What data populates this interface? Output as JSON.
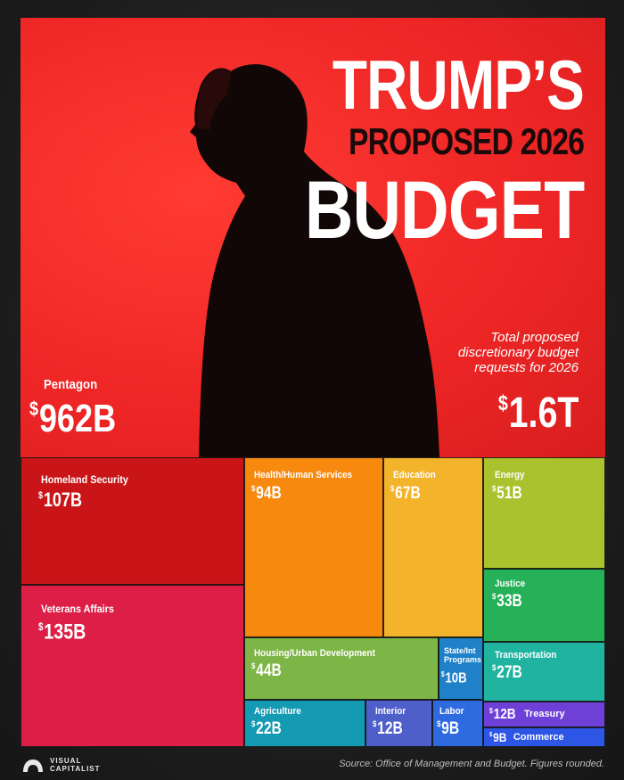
{
  "title": {
    "line1": "TRUMP’S",
    "line2": "PROPOSED 2026",
    "line3": "BUDGET"
  },
  "total": {
    "caption_line1": "Total proposed",
    "caption_line2": "discretionary budget",
    "caption_line3": "requests for 2026",
    "currency": "$",
    "value": "1.6T"
  },
  "source": "Source: Office of Management and Budget. Figures rounded.",
  "logo": {
    "line1": "VISUAL",
    "line2": "CAPITALIST"
  },
  "colors": {
    "hero_red": "#ed2525",
    "homeland": "#c91518",
    "veterans": "#dd1e47",
    "health": "#f7890f",
    "education": "#f3b32a",
    "energy": "#a9c22d",
    "justice": "#26b058",
    "transportation": "#1fb3a0",
    "housing": "#7db546",
    "state": "#1f82c9",
    "agriculture": "#159ab3",
    "interior": "#4e5fc9",
    "labor": "#2f6be0",
    "treasury": "#6f40d8",
    "commerce": "#2d55e6"
  },
  "chart_data": {
    "type": "treemap",
    "unit": "$B",
    "items": [
      {
        "name": "Pentagon",
        "label": "962B",
        "value": 962
      },
      {
        "name": "Homeland Security",
        "label": "107B",
        "value": 107
      },
      {
        "name": "Veterans Affairs",
        "label": "135B",
        "value": 135
      },
      {
        "name": "Health/Human Services",
        "label": "94B",
        "value": 94
      },
      {
        "name": "Education",
        "label": "67B",
        "value": 67
      },
      {
        "name": "Energy",
        "label": "51B",
        "value": 51
      },
      {
        "name": "Justice",
        "label": "33B",
        "value": 33
      },
      {
        "name": "Transportation",
        "label": "27B",
        "value": 27
      },
      {
        "name": "Housing/Urban Development",
        "label": "44B",
        "value": 44
      },
      {
        "name": "State/Int Programs",
        "label": "10B",
        "value": 10
      },
      {
        "name": "Agriculture",
        "label": "22B",
        "value": 22
      },
      {
        "name": "Interior",
        "label": "12B",
        "value": 12
      },
      {
        "name": "Labor",
        "label": "9B",
        "value": 9
      },
      {
        "name": "Treasury",
        "label": "12B",
        "value": 12
      },
      {
        "name": "Commerce",
        "label": "9B",
        "value": 9
      }
    ]
  }
}
